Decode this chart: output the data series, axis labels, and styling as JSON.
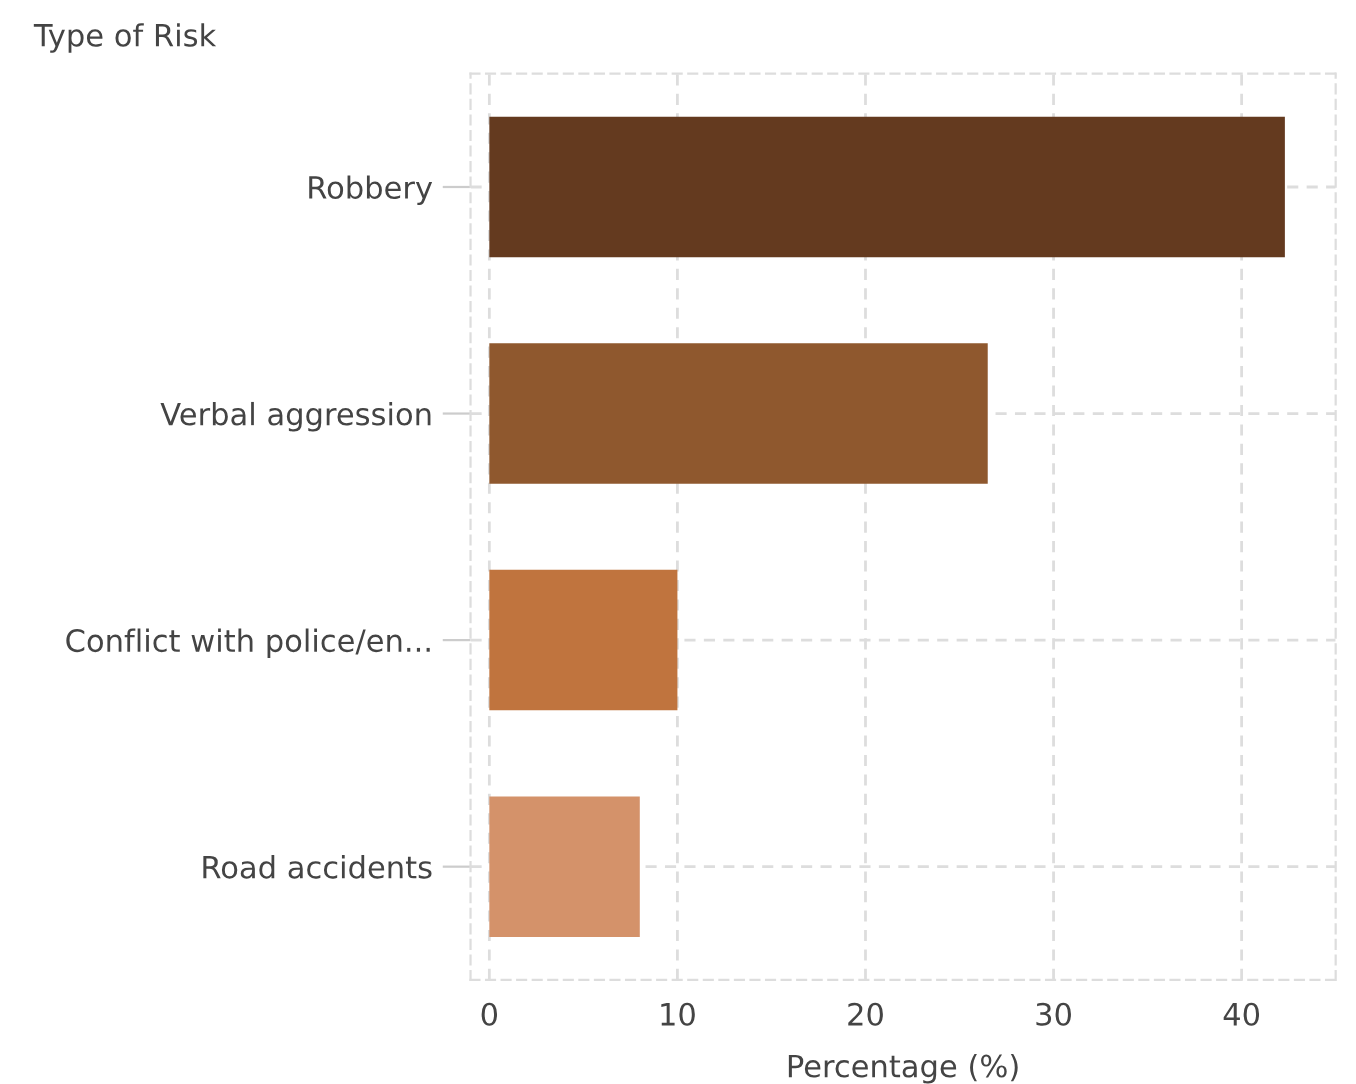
{
  "chart_data": {
    "type": "bar",
    "orientation": "horizontal",
    "ylabel": "Type of Risk",
    "xlabel": "Percentage (%)",
    "categories": [
      "Robbery",
      "Verbal aggression",
      "Conflict with police/en...",
      "Road accidents"
    ],
    "values": [
      42.3,
      26.5,
      10,
      8
    ],
    "colors": [
      "#643a1f",
      "#8f582e",
      "#c0743e",
      "#d4926a"
    ],
    "xlim": [
      -1,
      45
    ],
    "xticks": [
      0,
      10,
      20,
      30,
      40
    ],
    "grid": true
  }
}
